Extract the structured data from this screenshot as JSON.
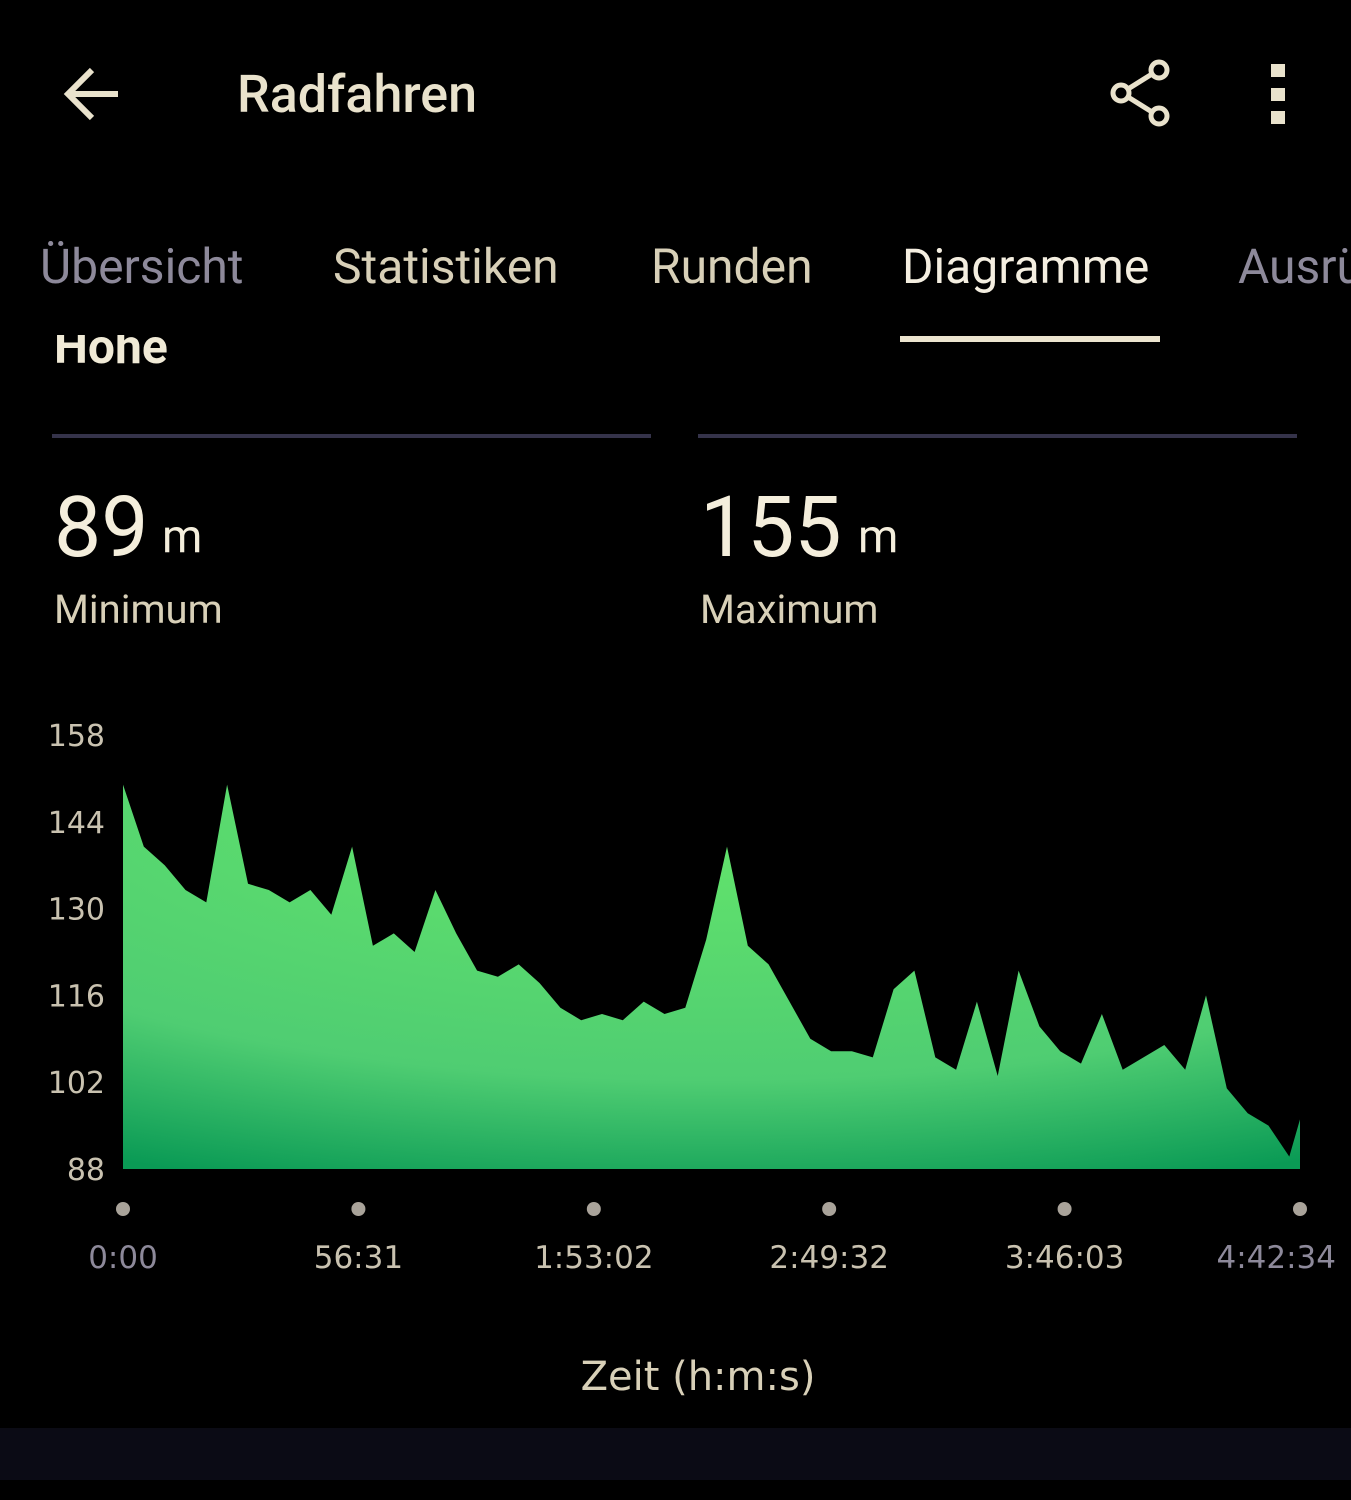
{
  "header": {
    "title": "Radfahren"
  },
  "tabs": [
    "Übersicht",
    "Statistiken",
    "Runden",
    "Diagramme",
    "Ausrü"
  ],
  "section": {
    "title": "Höhe"
  },
  "stats": [
    {
      "value": 89,
      "unit": "m",
      "label": "Minimum"
    },
    {
      "value": 155,
      "unit": "m",
      "label": "Maximum"
    }
  ],
  "chart_data": {
    "type": "area",
    "color": "#5fe06a",
    "x": [
      0,
      300,
      600,
      900,
      1200,
      1500,
      1800,
      2100,
      2400,
      2700,
      3000,
      3300,
      3600,
      3900,
      4200,
      4500,
      4800,
      5100,
      5400,
      5700,
      6000,
      6300,
      6600,
      6900,
      7200,
      7500,
      7800,
      8100,
      8400,
      8700,
      9000,
      9300,
      9600,
      9900,
      10200,
      10500,
      10800,
      11100,
      11400,
      11700,
      12000,
      12300,
      12600,
      12900,
      13200,
      13500,
      13800,
      14100,
      14400,
      14700,
      15000,
      15300,
      15600,
      15900,
      16200,
      16500,
      16800,
      16954
    ],
    "values": [
      150,
      140,
      137,
      133,
      131,
      150,
      134,
      133,
      131,
      133,
      129,
      140,
      124,
      126,
      123,
      133,
      126,
      120,
      119,
      121,
      118,
      114,
      112,
      113,
      112,
      115,
      113,
      114,
      125,
      140,
      124,
      121,
      115,
      109,
      107,
      107,
      106,
      117,
      120,
      106,
      104,
      115,
      103,
      120,
      111,
      107,
      105,
      113,
      104,
      106,
      108,
      104,
      116,
      101,
      97,
      95,
      90,
      96
    ],
    "xlim": [
      0,
      16954
    ],
    "xticks": [
      {
        "value": 0,
        "label": "0:00"
      },
      {
        "value": 3391,
        "label": "56:31"
      },
      {
        "value": 6782,
        "label": "1:53:02"
      },
      {
        "value": 10172,
        "label": "2:49:32"
      },
      {
        "value": 13563,
        "label": "3:46:03"
      },
      {
        "value": 16954,
        "label": "4:42:34"
      }
    ],
    "ylim": [
      88,
      158
    ],
    "yticks": [
      88,
      102,
      116,
      130,
      144,
      158
    ],
    "x_label": "Zeit (h:m:s)"
  }
}
